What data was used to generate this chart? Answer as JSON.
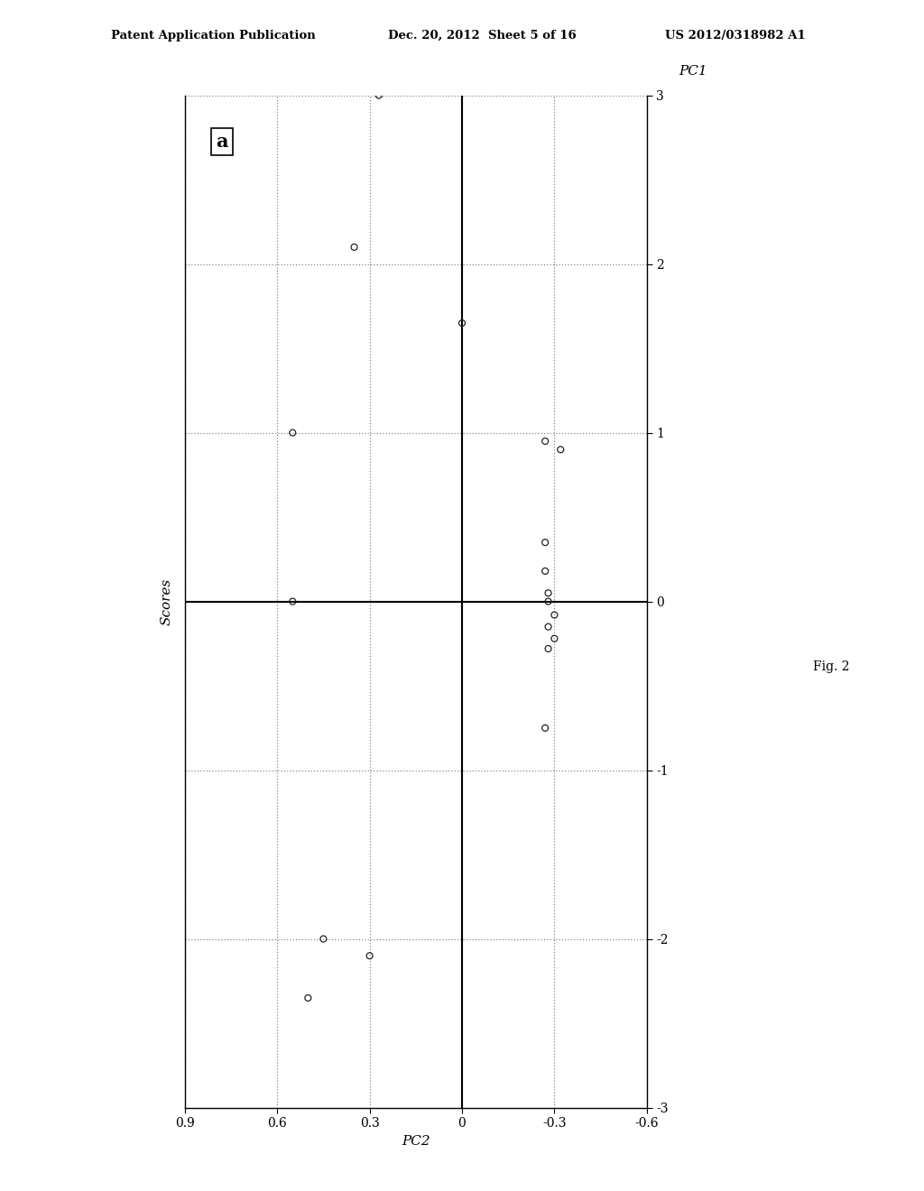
{
  "scatter_points": [
    [
      0.27,
      3.0
    ],
    [
      0.35,
      2.1
    ],
    [
      0.0,
      1.65
    ],
    [
      -0.32,
      0.9
    ],
    [
      -0.27,
      0.95
    ],
    [
      0.55,
      1.0
    ],
    [
      -0.27,
      0.35
    ],
    [
      -0.27,
      0.18
    ],
    [
      -0.28,
      0.05
    ],
    [
      -0.28,
      0.0
    ],
    [
      -0.3,
      -0.08
    ],
    [
      -0.28,
      -0.15
    ],
    [
      -0.3,
      -0.22
    ],
    [
      -0.28,
      -0.28
    ],
    [
      -0.27,
      -0.75
    ],
    [
      0.55,
      0.0
    ],
    [
      0.45,
      -2.0
    ],
    [
      0.3,
      -2.1
    ],
    [
      0.5,
      -2.35
    ]
  ],
  "x_label": "PC2",
  "y_label": "Scores",
  "right_axis_label": "PC1",
  "annotation": "a",
  "fig_label": "Fig. 2",
  "x_lim": [
    0.9,
    -0.6
  ],
  "y_lim": [
    -3,
    3
  ],
  "x_ticks": [
    0.9,
    0.6,
    0.3,
    0.0,
    -0.3,
    -0.6
  ],
  "y_ticks": [
    -3,
    -2,
    -1,
    0,
    1,
    2,
    3
  ],
  "background_color": "#ffffff",
  "point_color": "none",
  "point_edgecolor": "#222222",
  "point_size": 25,
  "header_line1": "Patent Application Publication",
  "header_line2": "Dec. 20, 2012  Sheet 5 of 16",
  "header_line3": "US 2012/0318982 A1"
}
